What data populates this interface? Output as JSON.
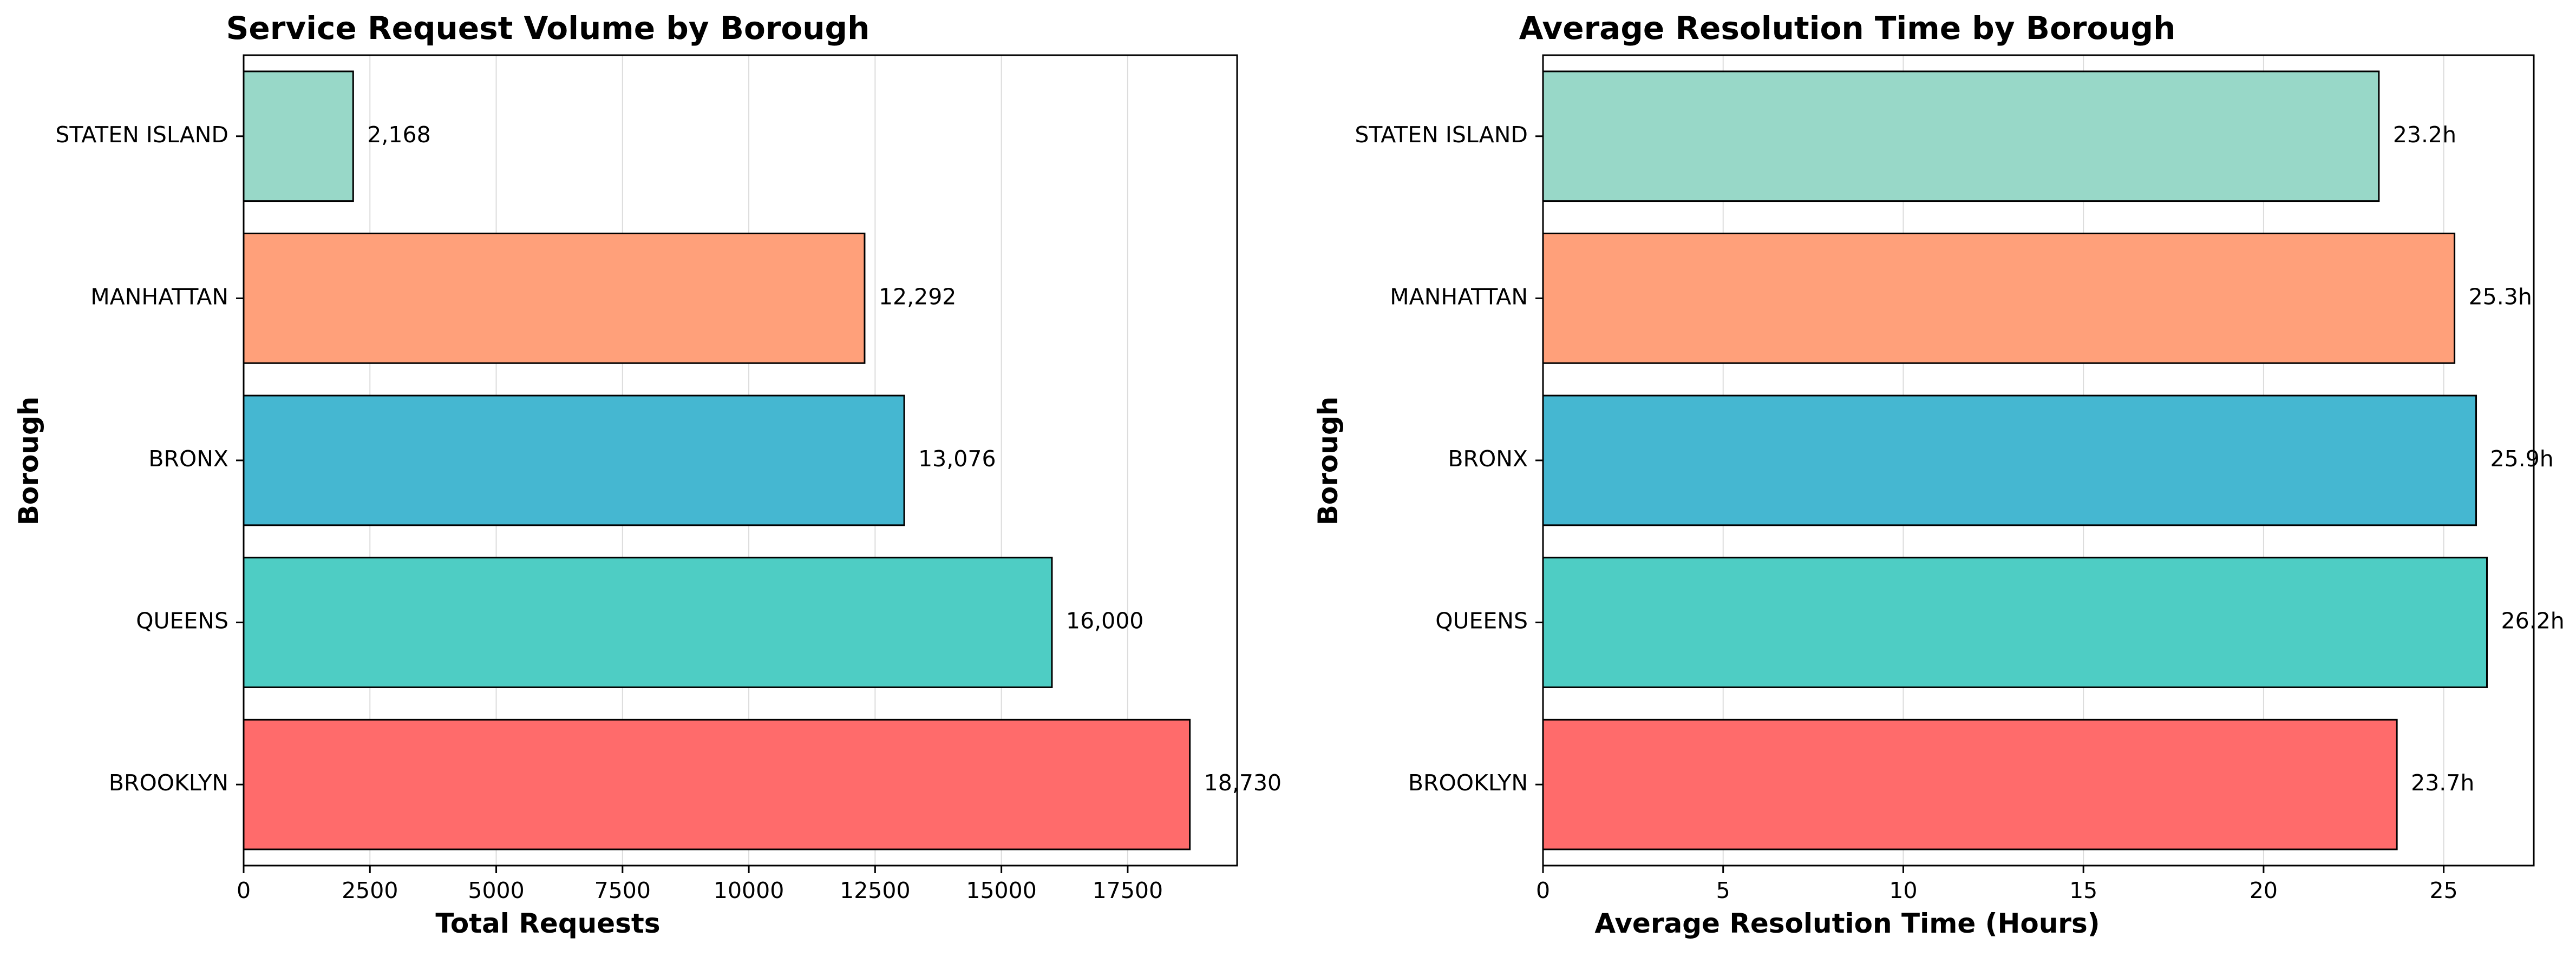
{
  "chart_data": [
    {
      "type": "bar",
      "orientation": "horizontal",
      "title": "Service Request Volume by Borough",
      "xlabel": "Total Requests",
      "ylabel": "Borough",
      "categories": [
        "BROOKLYN",
        "QUEENS",
        "BRONX",
        "MANHATTAN",
        "STATEN ISLAND"
      ],
      "values": [
        18730,
        16000,
        13076,
        12292,
        2168
      ],
      "value_labels": [
        "18,730",
        "16,000",
        "13,076",
        "12,292",
        "2,168"
      ],
      "colors": [
        "#FF6B6B",
        "#4ECDC4",
        "#45B7D1",
        "#FFA07A",
        "#98D8C8"
      ],
      "xlim": [
        0,
        19666
      ],
      "xticks": [
        0,
        2500,
        5000,
        7500,
        10000,
        12500,
        15000,
        17500
      ],
      "xtick_labels": [
        "0",
        "2500",
        "5000",
        "7500",
        "10000",
        "12500",
        "15000",
        "17500"
      ],
      "grid": "x"
    },
    {
      "type": "bar",
      "orientation": "horizontal",
      "title": "Average Resolution Time by Borough",
      "xlabel": "Average Resolution Time (Hours)",
      "ylabel": "Borough",
      "categories": [
        "BROOKLYN",
        "QUEENS",
        "BRONX",
        "MANHATTAN",
        "STATEN ISLAND"
      ],
      "values": [
        23.7,
        26.2,
        25.9,
        25.3,
        23.2
      ],
      "value_labels": [
        "23.7h",
        "26.2h",
        "25.9h",
        "25.3h",
        "23.2h"
      ],
      "colors": [
        "#FF6B6B",
        "#4ECDC4",
        "#45B7D1",
        "#FFA07A",
        "#98D8C8"
      ],
      "xlim": [
        0,
        27.5
      ],
      "xticks": [
        0,
        5,
        10,
        15,
        20,
        25
      ],
      "xtick_labels": [
        "0",
        "5",
        "10",
        "15",
        "20",
        "25"
      ],
      "grid": "x"
    }
  ]
}
